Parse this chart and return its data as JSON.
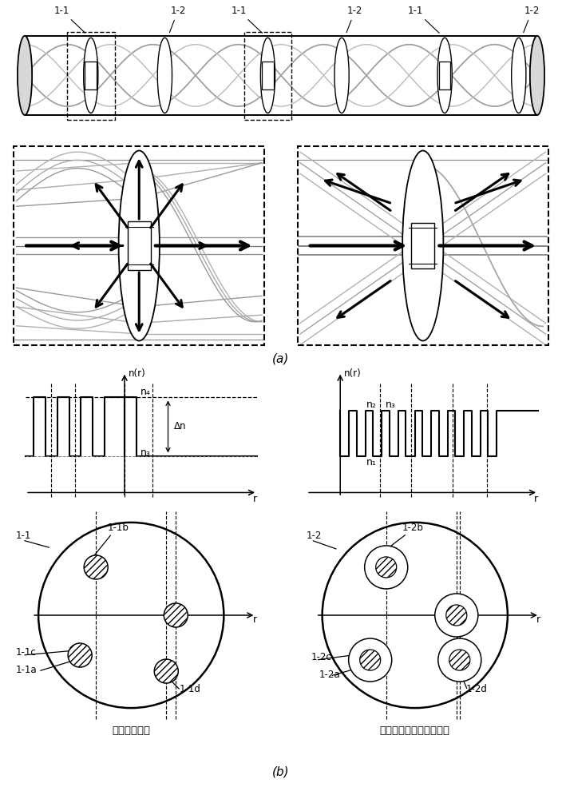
{
  "fiber1_name": "螺旋四芯光纤",
  "fiber2_name": "螺旋氟化物包层四芯光纤",
  "label_a": "(a)",
  "label_b": "(b)",
  "bg": "#ffffff"
}
